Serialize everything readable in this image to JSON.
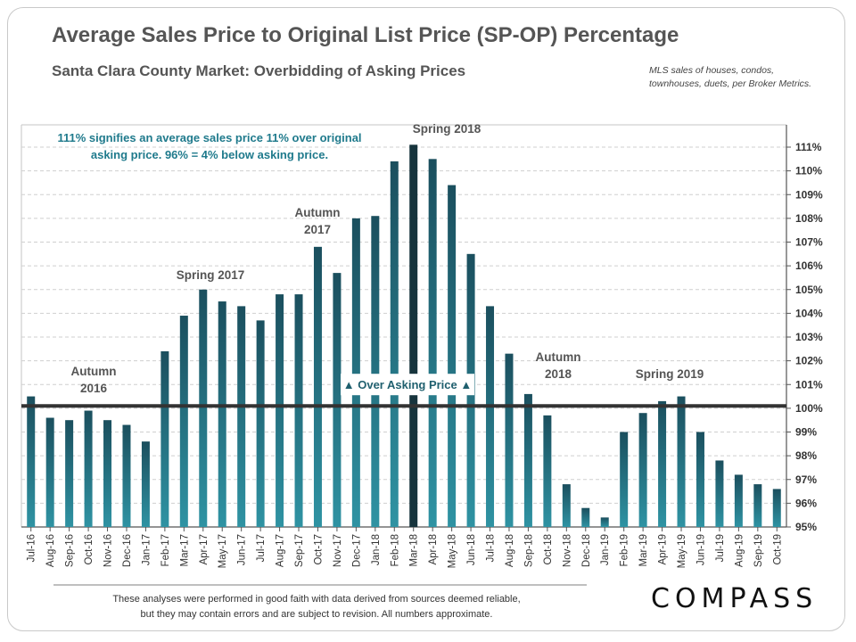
{
  "header": {
    "title": "Average Sales Price to Original List Price (SP-OP) Percentage",
    "subtitle": "Santa Clara County Market:  Overbidding  of  Asking Prices",
    "source_line1": "MLS sales of houses,  condos,",
    "source_line2": "townhouses,  duets,  per Broker Metrics."
  },
  "note": {
    "line1": "111% signifies an average sales price 11% over original",
    "line2": "asking price. 96% = 4% below asking price."
  },
  "footer": {
    "line1": "These analyses  were performed in good faith with data derived from sources deemed reliable,",
    "line2": "but they may contain  errors and are subject to revision.  All numbers approximate.",
    "logo": "COMPASS"
  },
  "colors": {
    "bar_light": "#2f93a3",
    "bar_dark": "#1b4f5e",
    "highlight_bar": "#17343d",
    "reference_line": "#333333"
  },
  "chart_data": {
    "type": "bar",
    "title": "Average Sales Price to Original List Price (SP-OP) Percentage",
    "ylim": [
      95,
      111
    ],
    "ytick_labels": [
      "95%",
      "96%",
      "97%",
      "98%",
      "99%",
      "100%",
      "101%",
      "102%",
      "103%",
      "104%",
      "105%",
      "106%",
      "107%",
      "108%",
      "109%",
      "110%",
      "111%"
    ],
    "yaxis_position": "right",
    "reference_line": 100.1,
    "reference_label": "▲ Over Asking Price ▲",
    "highlight_category": "Mar-18",
    "categories": [
      "Jul-16",
      "Aug-16",
      "Sep-16",
      "Oct-16",
      "Nov-16",
      "Dec-16",
      "Jan-17",
      "Feb-17",
      "Mar-17",
      "Apr-17",
      "May-17",
      "Jun-17",
      "Jul-17",
      "Aug-17",
      "Sep-17",
      "Oct-17",
      "Nov-17",
      "Dec-17",
      "Jan-18",
      "Feb-18",
      "Mar-18",
      "Apr-18",
      "May-18",
      "Jun-18",
      "Jul-18",
      "Aug-18",
      "Sep-18",
      "Oct-18",
      "Nov-18",
      "Dec-18",
      "Jan-19",
      "Feb-19",
      "Mar-19",
      "Apr-19",
      "May-19",
      "Jun-19",
      "Jul-19",
      "Aug-19",
      "Sep-19",
      "Oct-19"
    ],
    "values": [
      100.5,
      99.6,
      99.5,
      99.9,
      99.5,
      99.3,
      98.6,
      102.4,
      103.9,
      105.0,
      104.5,
      104.3,
      103.7,
      104.8,
      104.8,
      106.8,
      105.7,
      108.0,
      108.1,
      110.4,
      111.1,
      110.5,
      109.4,
      106.5,
      104.3,
      102.3,
      100.6,
      99.7,
      96.8,
      95.8,
      95.4,
      99.0,
      99.8,
      100.3,
      100.5,
      99.0,
      97.8,
      97.2,
      96.8,
      96.6
    ],
    "annotations": [
      {
        "line1": "Autumn",
        "line2": "2016"
      },
      {
        "line1": "Spring 2017",
        "line2": ""
      },
      {
        "line1": "Autumn",
        "line2": "2017"
      },
      {
        "line1": "Spring 2018",
        "line2": ""
      },
      {
        "line1": "Autumn",
        "line2": "2018"
      },
      {
        "line1": "Spring 2019",
        "line2": ""
      }
    ]
  }
}
